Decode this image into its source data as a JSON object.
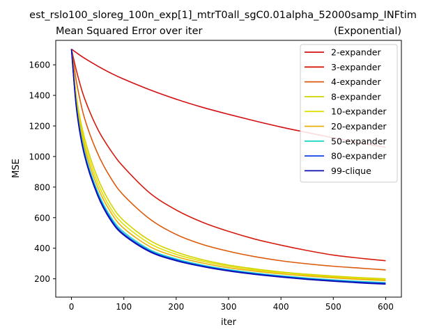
{
  "chart_data": {
    "type": "line",
    "suptitle": "est_rslo100_sloreg_100n_exp[1]_mtrT0all_sgC0.01alpha_52000samp_INFtim",
    "title": "Mean Squared Error over iter",
    "title_right": "(Exponential)",
    "xlabel": "iter",
    "ylabel": "MSE",
    "xlim": [
      -30,
      630
    ],
    "ylim": [
      80,
      1760
    ],
    "xticks": [
      0,
      100,
      200,
      300,
      400,
      500,
      600
    ],
    "yticks": [
      200,
      400,
      600,
      800,
      1000,
      1200,
      1400,
      1600
    ],
    "grid": false,
    "legend_position": "top-right",
    "x": [
      0,
      10,
      25,
      50,
      75,
      100,
      150,
      200,
      250,
      300,
      350,
      400,
      450,
      500,
      550,
      600
    ],
    "series": [
      {
        "name": "2-expander",
        "color": "#d40f12",
        "values": [
          1703,
          1678,
          1643,
          1592,
          1546,
          1506,
          1436,
          1375,
          1322,
          1276,
          1233,
          1193,
          1157,
          1122,
          1090,
          1060
        ]
      },
      {
        "name": "3-expander",
        "color": "#d71a0e",
        "values": [
          1703,
          1555,
          1380,
          1180,
          1040,
          930,
          760,
          650,
          570,
          510,
          460,
          420,
          385,
          355,
          335,
          318
        ]
      },
      {
        "name": "4-expander",
        "color": "#dc5a0a",
        "values": [
          1703,
          1480,
          1250,
          1020,
          860,
          745,
          590,
          490,
          425,
          380,
          345,
          318,
          298,
          282,
          270,
          258
        ]
      },
      {
        "name": "8-expander",
        "color": "#d2d200",
        "values": [
          1703,
          1380,
          1120,
          860,
          690,
          580,
          450,
          375,
          325,
          290,
          265,
          245,
          230,
          218,
          208,
          200
        ]
      },
      {
        "name": "10-expander",
        "color": "#e0e000",
        "values": [
          1703,
          1360,
          1090,
          830,
          660,
          555,
          430,
          360,
          315,
          282,
          258,
          240,
          225,
          213,
          203,
          195
        ]
      },
      {
        "name": "20-expander",
        "color": "#eaae0a",
        "values": [
          1703,
          1340,
          1060,
          800,
          635,
          530,
          410,
          345,
          303,
          272,
          250,
          232,
          218,
          206,
          196,
          188
        ]
      },
      {
        "name": "50-expander",
        "color": "#1fd6c2",
        "values": [
          1703,
          1320,
          1030,
          770,
          605,
          505,
          390,
          330,
          290,
          260,
          238,
          220,
          205,
          193,
          183,
          175
        ]
      },
      {
        "name": "80-expander",
        "color": "#0a40e6",
        "values": [
          1703,
          1310,
          1015,
          755,
          592,
          493,
          382,
          323,
          284,
          255,
          233,
          215,
          200,
          188,
          178,
          170
        ]
      },
      {
        "name": "99-clique",
        "color": "#0b0bb0",
        "values": [
          1703,
          1300,
          1005,
          745,
          582,
          485,
          376,
          318,
          280,
          251,
          229,
          211,
          196,
          184,
          173,
          165
        ]
      }
    ]
  }
}
